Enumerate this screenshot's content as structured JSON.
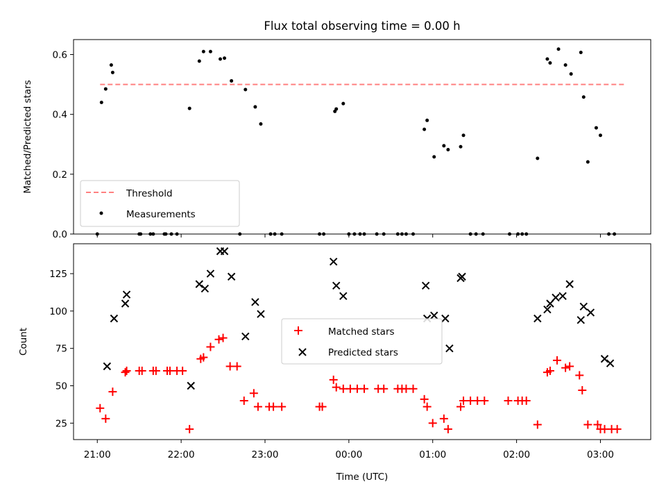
{
  "chart_data": [
    {
      "type": "scatter",
      "title": "Flux total observing time = 0.00 h",
      "ylabel": "Matched/Predicted stars",
      "xlabel": "",
      "xlim": [
        "20:43",
        "03:36"
      ],
      "ylim": [
        0,
        0.65
      ],
      "yticks": [
        0.0,
        0.2,
        0.4,
        0.6
      ],
      "ytick_labels": [
        "0.0",
        "0.2",
        "0.4",
        "0.6"
      ],
      "legend_position": "lower-left",
      "threshold": {
        "name": "Threshold",
        "value": 0.5,
        "x_range": [
          "21:02",
          "03:17"
        ],
        "color": "#ff8080",
        "style": "dashed"
      },
      "series": [
        {
          "name": "Measurements",
          "color": "#000000",
          "marker": "dot",
          "points": [
            [
              "21:00",
              0.0
            ],
            [
              "21:03",
              0.44
            ],
            [
              "21:06",
              0.485
            ],
            [
              "21:10",
              0.565
            ],
            [
              "21:11",
              0.54
            ],
            [
              "21:30",
              0.0
            ],
            [
              "21:31",
              0.0
            ],
            [
              "21:38",
              0.0
            ],
            [
              "21:40",
              0.0
            ],
            [
              "21:48",
              0.0
            ],
            [
              "21:49",
              0.0
            ],
            [
              "21:53",
              0.0
            ],
            [
              "21:57",
              0.0
            ],
            [
              "22:06",
              0.42
            ],
            [
              "22:13",
              0.578
            ],
            [
              "22:16",
              0.61
            ],
            [
              "22:21",
              0.61
            ],
            [
              "22:28",
              0.585
            ],
            [
              "22:31",
              0.588
            ],
            [
              "22:36",
              0.512
            ],
            [
              "22:42",
              0.0
            ],
            [
              "22:46",
              0.483
            ],
            [
              "22:53",
              0.425
            ],
            [
              "22:57",
              0.368
            ],
            [
              "23:04",
              0.0
            ],
            [
              "23:07",
              0.0
            ],
            [
              "23:12",
              0.0
            ],
            [
              "23:39",
              0.0
            ],
            [
              "23:42",
              0.0
            ],
            [
              "23:50",
              0.41
            ],
            [
              "23:51",
              0.418
            ],
            [
              "23:56",
              0.436
            ],
            [
              "00:00",
              0.0
            ],
            [
              "00:04",
              0.0
            ],
            [
              "00:08",
              0.0
            ],
            [
              "00:11",
              0.0
            ],
            [
              "00:20",
              0.0
            ],
            [
              "00:25",
              0.0
            ],
            [
              "00:35",
              0.0
            ],
            [
              "00:38",
              0.0
            ],
            [
              "00:41",
              0.0
            ],
            [
              "00:46",
              0.0
            ],
            [
              "00:54",
              0.35
            ],
            [
              "00:56",
              0.38
            ],
            [
              "01:01",
              0.258
            ],
            [
              "01:08",
              0.295
            ],
            [
              "01:11",
              0.282
            ],
            [
              "01:20",
              0.292
            ],
            [
              "01:22",
              0.33
            ],
            [
              "01:27",
              0.0
            ],
            [
              "01:31",
              0.0
            ],
            [
              "01:36",
              0.0
            ],
            [
              "01:55",
              0.0
            ],
            [
              "02:01",
              0.0
            ],
            [
              "02:04",
              0.0
            ],
            [
              "02:07",
              0.0
            ],
            [
              "02:15",
              0.253
            ],
            [
              "02:22",
              0.585
            ],
            [
              "02:24",
              0.572
            ],
            [
              "02:30",
              0.618
            ],
            [
              "02:35",
              0.565
            ],
            [
              "02:39",
              0.535
            ],
            [
              "02:46",
              0.607
            ],
            [
              "02:48",
              0.458
            ],
            [
              "02:51",
              0.241
            ],
            [
              "02:57",
              0.355
            ],
            [
              "03:00",
              0.33
            ],
            [
              "03:06",
              0.0
            ],
            [
              "03:10",
              0.0
            ]
          ]
        }
      ]
    },
    {
      "type": "scatter",
      "title": "",
      "xlabel": "Time (UTC)",
      "ylabel": "Count",
      "xlim": [
        "20:43",
        "03:36"
      ],
      "ylim": [
        14,
        145
      ],
      "yticks": [
        25,
        50,
        75,
        100,
        125
      ],
      "ytick_labels": [
        "25",
        "50",
        "75",
        "100",
        "125"
      ],
      "xticks": [
        "21:00",
        "22:00",
        "23:00",
        "00:00",
        "01:00",
        "02:00",
        "03:00"
      ],
      "xtick_labels": [
        "21:00",
        "22:00",
        "23:00",
        "00:00",
        "01:00",
        "02:00",
        "03:00"
      ],
      "legend_position": "center",
      "series": [
        {
          "name": "Matched stars",
          "color": "#ff0000",
          "marker": "plus",
          "points": [
            [
              "21:02",
              35
            ],
            [
              "21:06",
              28
            ],
            [
              "21:11",
              46
            ],
            [
              "21:20",
              59
            ],
            [
              "21:21",
              60
            ],
            [
              "21:30",
              60
            ],
            [
              "21:32",
              60
            ],
            [
              "21:40",
              60
            ],
            [
              "21:42",
              60
            ],
            [
              "21:50",
              60
            ],
            [
              "21:52",
              60
            ],
            [
              "21:57",
              60
            ],
            [
              "22:01",
              60
            ],
            [
              "22:06",
              21
            ],
            [
              "22:14",
              68
            ],
            [
              "22:16",
              69
            ],
            [
              "22:21",
              76
            ],
            [
              "22:27",
              81
            ],
            [
              "22:30",
              82
            ],
            [
              "22:35",
              63
            ],
            [
              "22:40",
              63
            ],
            [
              "22:45",
              40
            ],
            [
              "22:52",
              45
            ],
            [
              "22:55",
              36
            ],
            [
              "23:03",
              36
            ],
            [
              "23:06",
              36
            ],
            [
              "23:12",
              36
            ],
            [
              "23:39",
              36
            ],
            [
              "23:41",
              36
            ],
            [
              "23:49",
              54
            ],
            [
              "23:51",
              49
            ],
            [
              "23:56",
              48
            ],
            [
              "00:01",
              48
            ],
            [
              "00:06",
              48
            ],
            [
              "00:11",
              48
            ],
            [
              "00:21",
              48
            ],
            [
              "00:25",
              48
            ],
            [
              "00:35",
              48
            ],
            [
              "00:38",
              48
            ],
            [
              "00:41",
              48
            ],
            [
              "00:46",
              48
            ],
            [
              "00:54",
              41
            ],
            [
              "00:56",
              36
            ],
            [
              "01:00",
              25
            ],
            [
              "01:08",
              28
            ],
            [
              "01:11",
              21
            ],
            [
              "01:20",
              36
            ],
            [
              "01:22",
              40
            ],
            [
              "01:27",
              40
            ],
            [
              "01:32",
              40
            ],
            [
              "01:37",
              40
            ],
            [
              "01:54",
              40
            ],
            [
              "02:01",
              40
            ],
            [
              "02:04",
              40
            ],
            [
              "02:07",
              40
            ],
            [
              "02:15",
              24
            ],
            [
              "02:22",
              59
            ],
            [
              "02:24",
              60
            ],
            [
              "02:29",
              67
            ],
            [
              "02:35",
              62
            ],
            [
              "02:38",
              63
            ],
            [
              "02:45",
              57
            ],
            [
              "02:47",
              47
            ],
            [
              "02:51",
              24
            ],
            [
              "02:58",
              24
            ],
            [
              "03:00",
              21
            ],
            [
              "03:03",
              21
            ],
            [
              "03:08",
              21
            ],
            [
              "03:12",
              21
            ]
          ]
        },
        {
          "name": "Predicted stars",
          "color": "#000000",
          "marker": "x",
          "points": [
            [
              "21:07",
              63
            ],
            [
              "21:12",
              95
            ],
            [
              "21:20",
              105
            ],
            [
              "21:21",
              111
            ],
            [
              "22:07",
              50
            ],
            [
              "22:13",
              118
            ],
            [
              "22:17",
              115
            ],
            [
              "22:21",
              125
            ],
            [
              "22:28",
              140
            ],
            [
              "22:31",
              140
            ],
            [
              "22:36",
              123
            ],
            [
              "22:46",
              83
            ],
            [
              "22:53",
              106
            ],
            [
              "22:57",
              98
            ],
            [
              "23:49",
              133
            ],
            [
              "23:51",
              117
            ],
            [
              "23:56",
              110
            ],
            [
              "00:55",
              117
            ],
            [
              "00:56",
              95
            ],
            [
              "01:01",
              97
            ],
            [
              "01:09",
              95
            ],
            [
              "01:12",
              75
            ],
            [
              "01:20",
              122
            ],
            [
              "01:21",
              123
            ],
            [
              "02:15",
              95
            ],
            [
              "02:22",
              101
            ],
            [
              "02:24",
              105
            ],
            [
              "02:28",
              109
            ],
            [
              "02:33",
              110
            ],
            [
              "02:38",
              118
            ],
            [
              "02:46",
              94
            ],
            [
              "02:48",
              103
            ],
            [
              "02:53",
              99
            ],
            [
              "03:03",
              68
            ],
            [
              "03:07",
              65
            ]
          ]
        }
      ]
    }
  ]
}
